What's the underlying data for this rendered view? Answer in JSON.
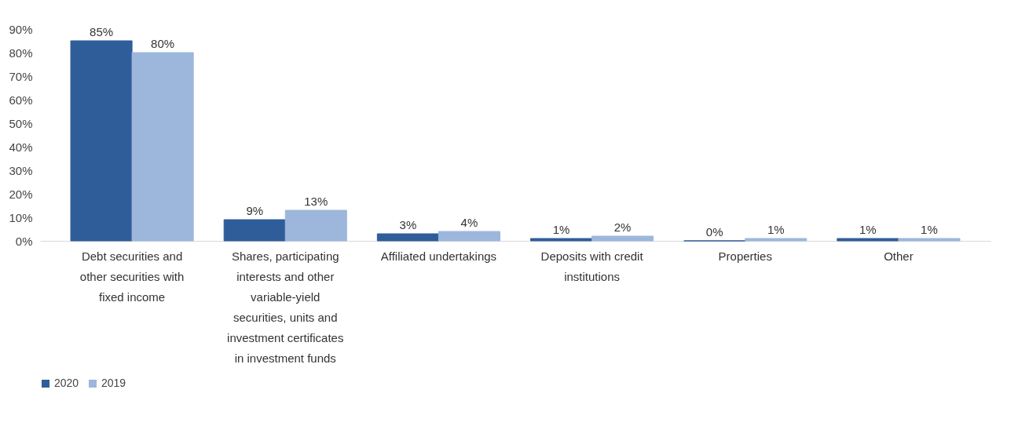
{
  "chart_data": {
    "type": "bar",
    "categories": [
      "Debt securities and other securities with fixed income",
      "Shares, participating interests and other variable-yield securities, units and investment certificates in investment funds",
      "Affiliated undertakings",
      "Deposits with credit institutions",
      "Properties",
      "Other"
    ],
    "series": [
      {
        "name": "2020",
        "color": "#2f5d9a",
        "values": [
          85,
          9,
          3,
          1,
          0,
          1
        ],
        "value_labels": [
          "85%",
          "9%",
          "3%",
          "1%",
          "0%",
          "1%"
        ]
      },
      {
        "name": "2019",
        "color": "#9db7dc",
        "values": [
          80,
          13,
          4,
          2,
          1,
          1
        ],
        "value_labels": [
          "80%",
          "13%",
          "4%",
          "2%",
          "1%",
          "1%"
        ]
      }
    ],
    "ylim": [
      0,
      90
    ],
    "yticks": [
      {
        "value": 0,
        "label": "0%"
      },
      {
        "value": 10,
        "label": "10%"
      },
      {
        "value": 20,
        "label": "20%"
      },
      {
        "value": 30,
        "label": "30%"
      },
      {
        "value": 40,
        "label": "40%"
      },
      {
        "value": 50,
        "label": "50%"
      },
      {
        "value": 60,
        "label": "60%"
      },
      {
        "value": 70,
        "label": "70%"
      },
      {
        "value": 80,
        "label": "80%"
      },
      {
        "value": 90,
        "label": "90%"
      }
    ],
    "grid": false,
    "legend": "bottom"
  }
}
